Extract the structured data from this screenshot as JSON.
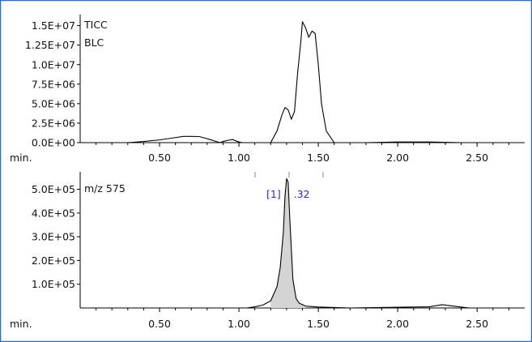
{
  "chart_data": [
    {
      "type": "line",
      "labels": [
        "TICC",
        "BLC"
      ],
      "x_unit_label": "min.",
      "xlim": [
        0.0,
        2.8
      ],
      "ylim": [
        0,
        16000000
      ],
      "xticks": [
        "0.50",
        "1.00",
        "1.50",
        "2.00",
        "2.50"
      ],
      "yticks": [
        "0.0E+00",
        "2.5E+06",
        "5.0E+06",
        "7.5E+06",
        "1.0E+07",
        "1.25E+07",
        "1.5E+07"
      ],
      "series": [
        {
          "x": [
            0.0,
            0.3,
            0.4,
            0.5,
            0.6,
            0.65,
            0.7,
            0.75,
            0.8,
            0.88,
            0.9,
            0.93,
            0.96,
            0.99,
            1.02,
            1.1,
            1.2,
            1.24,
            1.27,
            1.29,
            1.31,
            1.33,
            1.35,
            1.37,
            1.39,
            1.4,
            1.42,
            1.44,
            1.46,
            1.48,
            1.5,
            1.52,
            1.55,
            1.6,
            1.8,
            2.0,
            2.2,
            2.4,
            2.8
          ],
          "y": [
            0,
            0,
            150000,
            350000,
            650000,
            800000,
            800000,
            780000,
            500000,
            0,
            150000,
            300000,
            400000,
            150000,
            0,
            0,
            0,
            1500000,
            3500000,
            4500000,
            4200000,
            3000000,
            4000000,
            9000000,
            13000000,
            15500000,
            14700000,
            13500000,
            14300000,
            14000000,
            10000000,
            5000000,
            1500000,
            0,
            0,
            80000,
            80000,
            0,
            0
          ]
        }
      ]
    },
    {
      "type": "area",
      "labels": [
        "m/z 575"
      ],
      "x_unit_label": "min.",
      "peak_label": "[1]    .32",
      "xlim": [
        0.0,
        2.8
      ],
      "ylim": [
        0,
        560000
      ],
      "xticks": [
        "0.50",
        "1.00",
        "1.50",
        "2.00",
        "2.50"
      ],
      "yticks": [
        "1.0E+05",
        "2.0E+05",
        "3.0E+05",
        "4.0E+05",
        "5.0E+05"
      ],
      "series": [
        {
          "x": [
            0.0,
            1.05,
            1.1,
            1.15,
            1.2,
            1.24,
            1.26,
            1.28,
            1.29,
            1.3,
            1.31,
            1.32,
            1.34,
            1.36,
            1.38,
            1.42,
            1.5,
            1.7,
            2.2,
            2.28,
            2.35,
            2.45,
            2.8
          ],
          "y": [
            0,
            0,
            5000,
            12000,
            30000,
            90000,
            170000,
            320000,
            470000,
            545000,
            530000,
            380000,
            120000,
            40000,
            20000,
            8000,
            4000,
            0,
            5000,
            14000,
            8000,
            0,
            0
          ]
        }
      ]
    }
  ]
}
